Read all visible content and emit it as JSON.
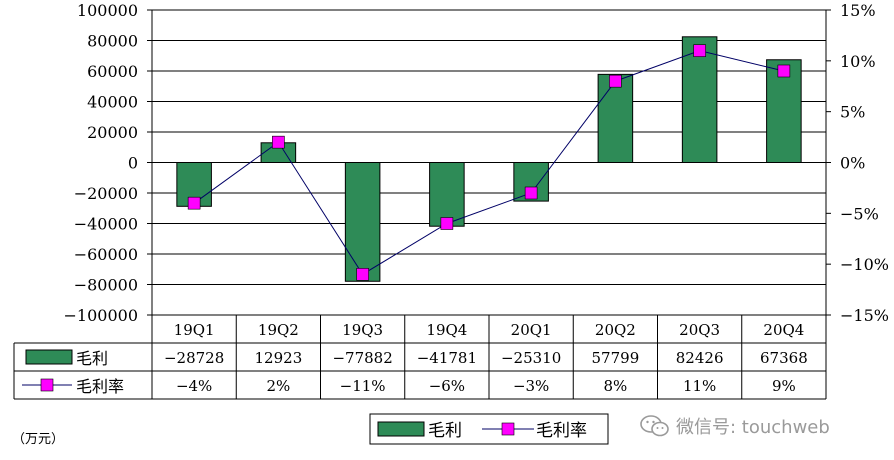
{
  "chart_data": {
    "type": "bar",
    "categories": [
      "19Q1",
      "19Q2",
      "19Q3",
      "19Q4",
      "20Q1",
      "20Q2",
      "20Q3",
      "20Q4"
    ],
    "series": [
      {
        "name": "毛利",
        "type": "bar",
        "axis": "left",
        "values": [
          -28728,
          12923,
          -77882,
          -41781,
          -25310,
          57799,
          82426,
          67368
        ]
      },
      {
        "name": "毛利率",
        "type": "line",
        "axis": "right",
        "values": [
          -4,
          2,
          -11,
          -6,
          -3,
          8,
          11,
          9
        ]
      }
    ],
    "y_left": {
      "min": -100000,
      "max": 100000,
      "step": 20000
    },
    "y_right": {
      "min": -15,
      "max": 15,
      "step": 5,
      "suffix": "%"
    },
    "table_rows": [
      {
        "label": "毛利",
        "cells": [
          "-28728",
          "12923",
          "-77882",
          "-41781",
          "-25310",
          "57799",
          "82426",
          "67368"
        ]
      },
      {
        "label": "毛利率",
        "cells": [
          "-4%",
          "2%",
          "-11%",
          "-6%",
          "-3%",
          "8%",
          "11%",
          "9%"
        ]
      }
    ],
    "legend": [
      "毛利",
      "毛利率"
    ],
    "legend_position": "bottom",
    "grid": true,
    "colors": {
      "bar": "#2e8b57",
      "bar_border": "#000000",
      "line": "#000066",
      "marker": "#ff00ff"
    }
  },
  "unit_label": "（万元）",
  "watermark": "微信号: touchweb"
}
